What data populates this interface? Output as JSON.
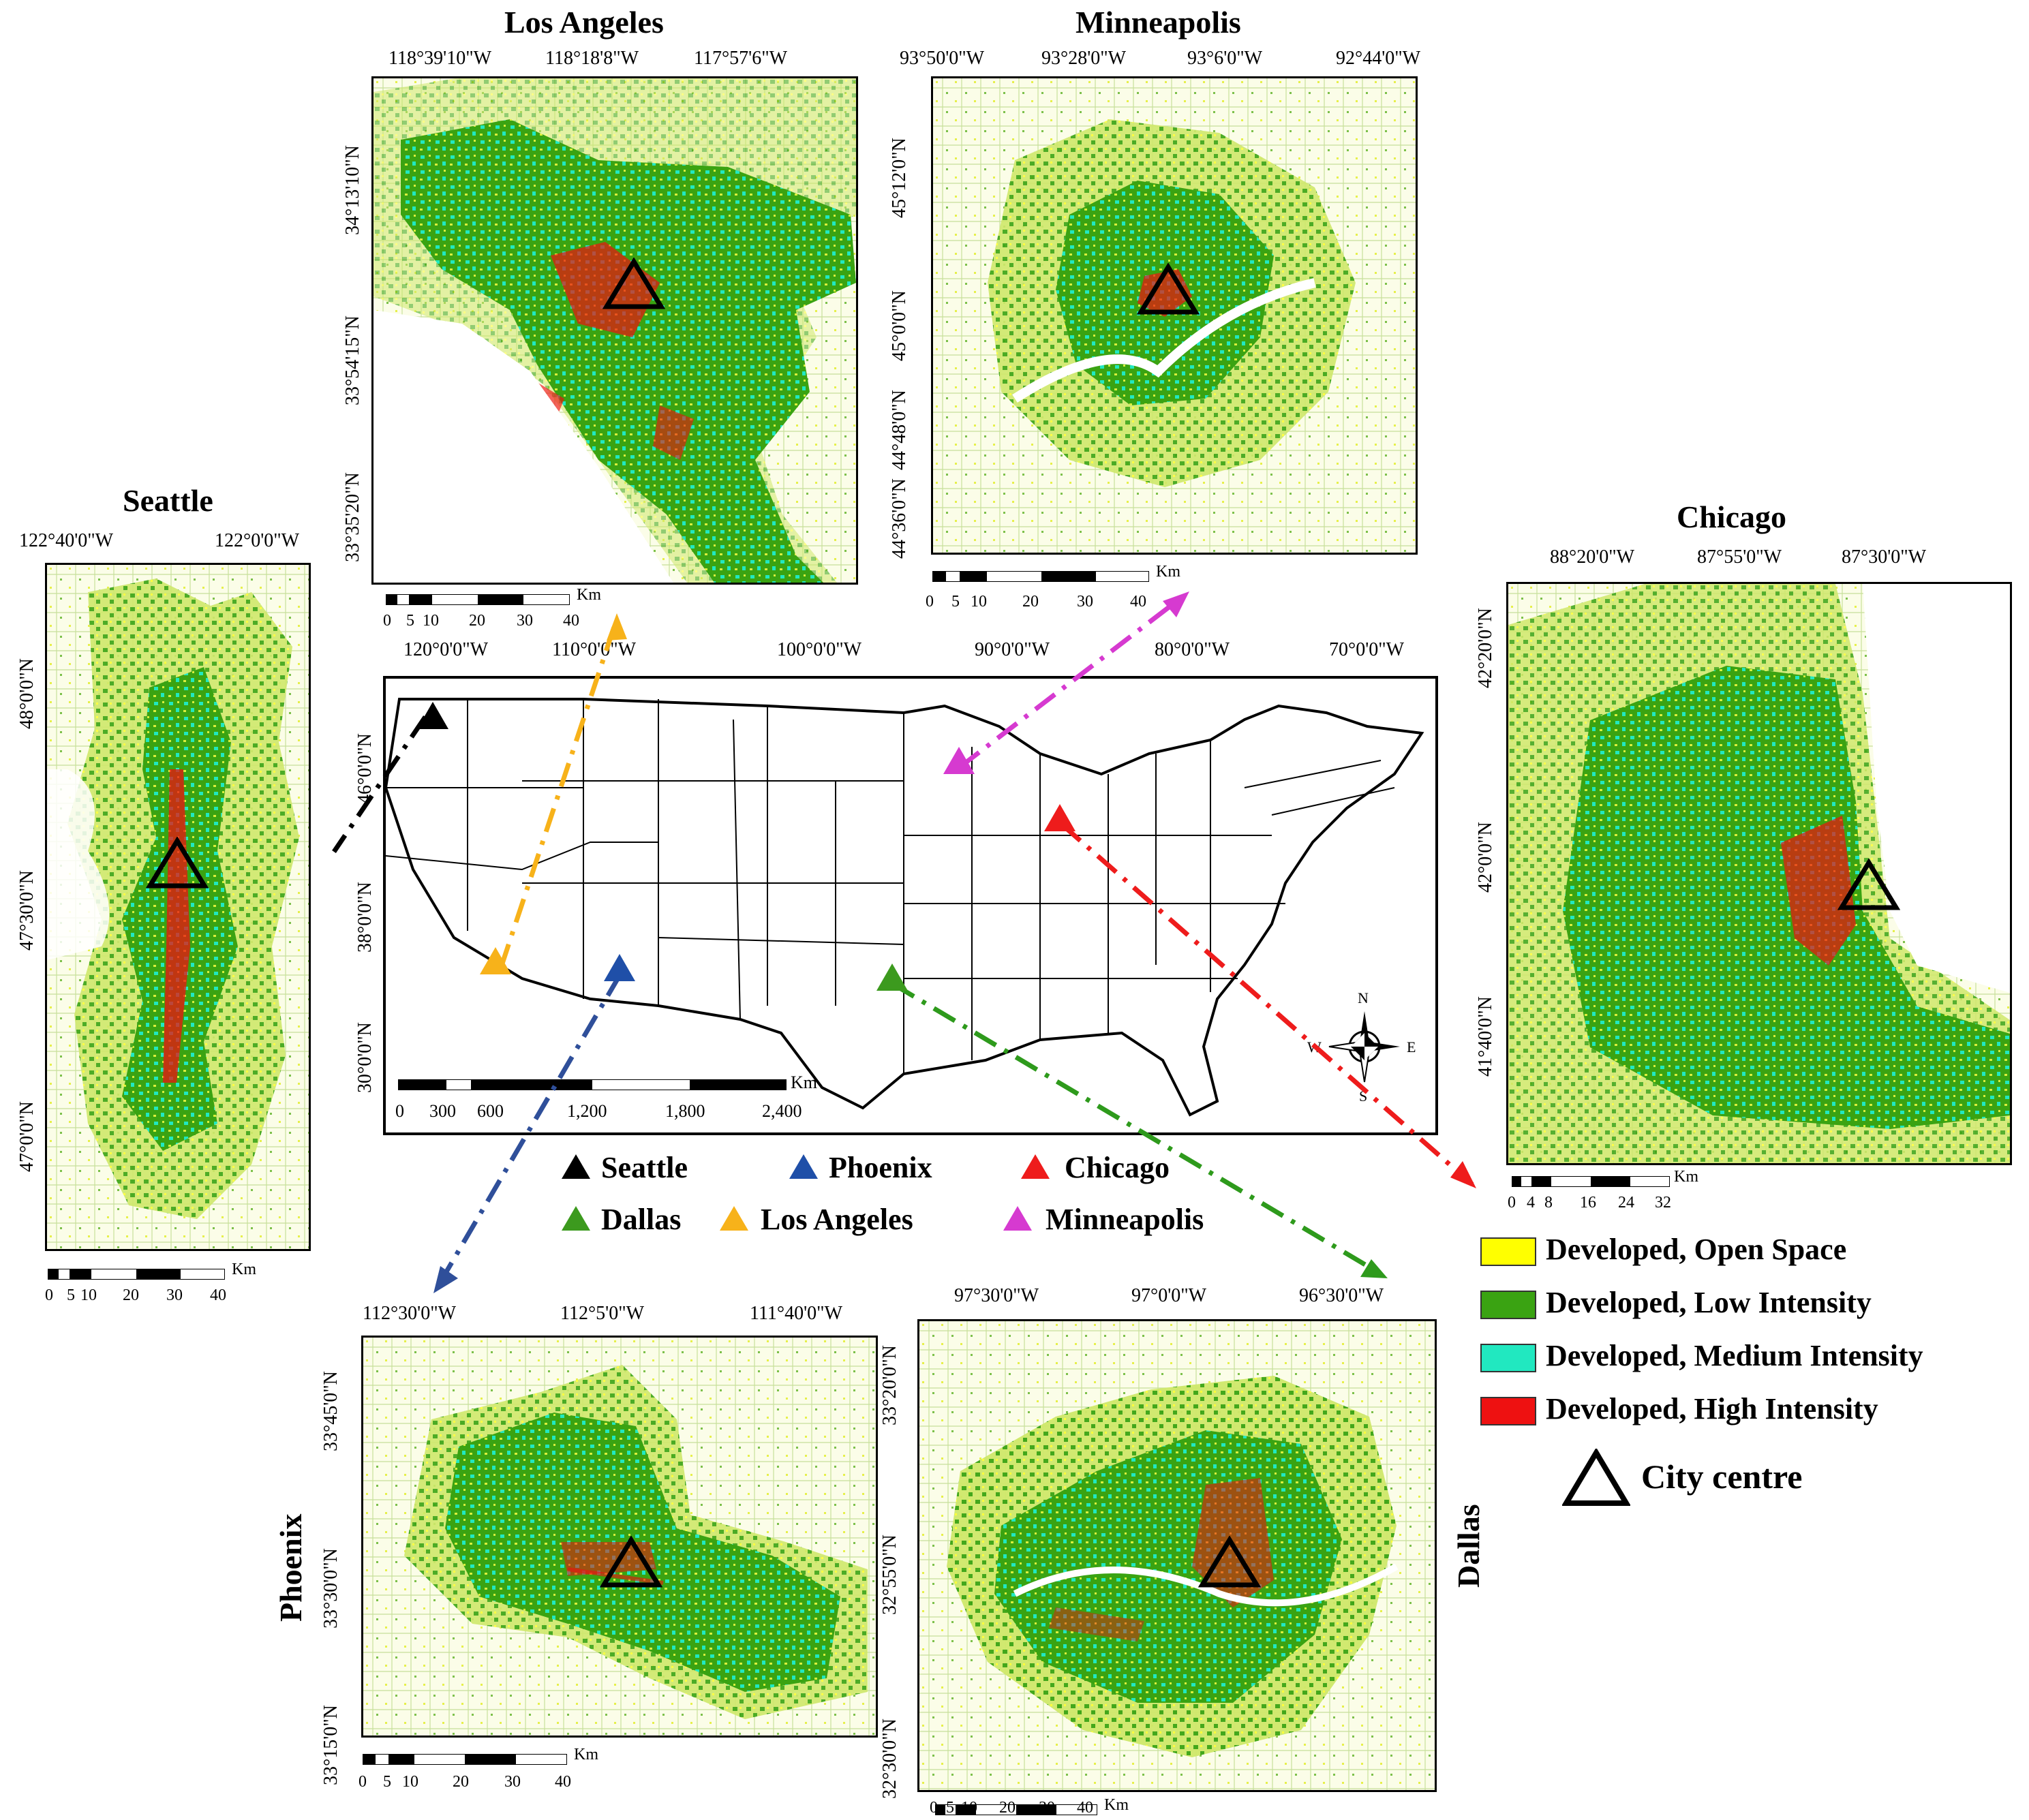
{
  "cities": {
    "seattle": {
      "title": "Seattle",
      "lon": [
        "122°40'0\"W",
        "122°0'0\"W"
      ],
      "lat": [
        "48°0'0\"N",
        "47°30'0\"N",
        "47°0'0\"N"
      ],
      "scale": [
        "0",
        "5",
        "10",
        "20",
        "30",
        "40"
      ],
      "unit": "Km"
    },
    "los_angeles": {
      "title": "Los Angeles",
      "lon": [
        "118°39'10\"W",
        "118°18'8\"W",
        "117°57'6\"W"
      ],
      "lat": [
        "34°13'10\"N",
        "33°54'15\"N",
        "33°35'20\"N"
      ],
      "scale": [
        "0",
        "5",
        "10",
        "20",
        "30",
        "40"
      ],
      "unit": "Km"
    },
    "minneapolis": {
      "title": "Minneapolis",
      "lon": [
        "93°50'0\"W",
        "93°28'0\"W",
        "93°6'0\"W",
        "92°44'0\"W"
      ],
      "lat": [
        "45°12'0\"N",
        "45°0'0\"N",
        "44°48'0\"N",
        "44°36'0\"N"
      ],
      "scale": [
        "0",
        "5",
        "10",
        "20",
        "30",
        "40"
      ],
      "unit": "Km"
    },
    "chicago": {
      "title": "Chicago",
      "lon": [
        "88°20'0\"W",
        "87°55'0\"W",
        "87°30'0\"W"
      ],
      "lat": [
        "42°20'0\"N",
        "42°0'0\"N",
        "41°40'0\"N"
      ],
      "scale": [
        "0",
        "4",
        "8",
        "16",
        "24",
        "32"
      ],
      "unit": "Km"
    },
    "phoenix": {
      "title": "Phoenix",
      "lon": [
        "112°30'0\"W",
        "112°5'0\"W",
        "111°40'0\"W"
      ],
      "lat": [
        "33°45'0\"N",
        "33°30'0\"N",
        "33°15'0\"N"
      ],
      "scale": [
        "0",
        "5",
        "10",
        "20",
        "30",
        "40"
      ],
      "unit": "Km"
    },
    "dallas": {
      "title": "Dallas",
      "lon": [
        "97°30'0\"W",
        "97°0'0\"W",
        "96°30'0\"W"
      ],
      "lat": [
        "33°20'0\"N",
        "32°55'0\"N",
        "32°30'0\"N"
      ],
      "scale": [
        "0",
        "5",
        "10",
        "20",
        "30",
        "40"
      ],
      "unit": "Km"
    }
  },
  "us_map": {
    "lon": [
      "120°0'0\"W",
      "110°0'0\"W",
      "100°0'0\"W",
      "90°0'0\"W",
      "80°0'0\"W",
      "70°0'0\"W"
    ],
    "lat": [
      "46°0'0\"N",
      "38°0'0\"N",
      "30°0'0\"N"
    ],
    "scale": [
      "0",
      "300",
      "600",
      "1,200",
      "1,800",
      "2,400"
    ],
    "unit": "Km",
    "compass": {
      "n": "N",
      "s": "S",
      "e": "E",
      "w": "W"
    },
    "markers": [
      {
        "name": "Seattle",
        "color": "#000000"
      },
      {
        "name": "Phoenix",
        "color": "#1f4fa8"
      },
      {
        "name": "Chicago",
        "color": "#ee1c1c"
      },
      {
        "name": "Dallas",
        "color": "#3c9a1e"
      },
      {
        "name": "Los Angeles",
        "color": "#f7b21a"
      },
      {
        "name": "Minneapolis",
        "color": "#d63ad0"
      }
    ]
  },
  "legend": {
    "items": [
      {
        "label": "Developed, Open Space",
        "color": "#ffff00"
      },
      {
        "label": "Developed, Low Intensity",
        "color": "#3aa312"
      },
      {
        "label": "Developed, Medium Intensity",
        "color": "#21e8c0"
      },
      {
        "label": "Developed, High Intensity",
        "color": "#ee1111"
      }
    ],
    "city_centre": "City centre"
  }
}
